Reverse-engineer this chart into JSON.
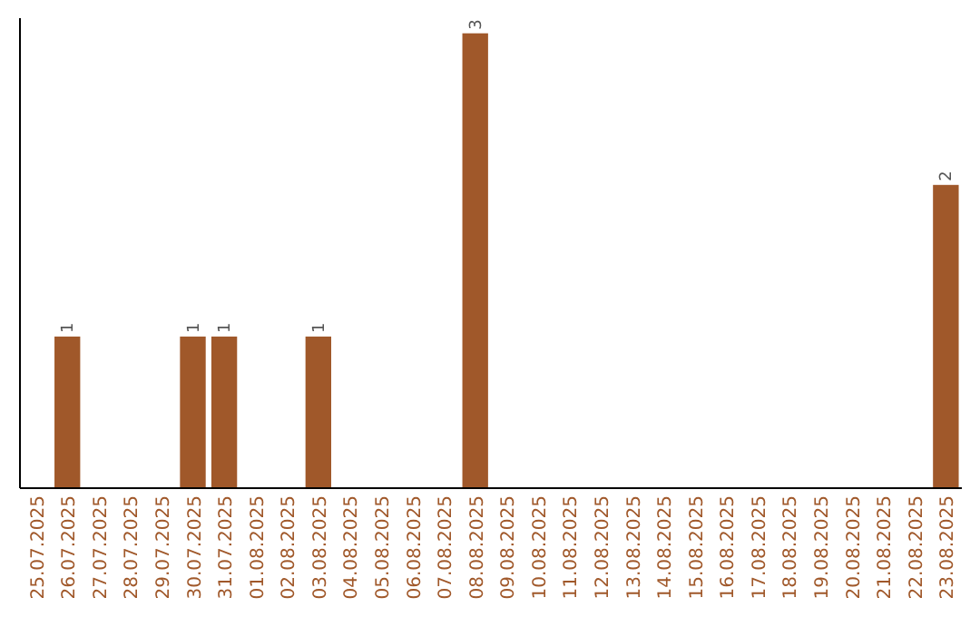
{
  "chart_data": {
    "type": "bar",
    "categories": [
      "25.07.2025",
      "26.07.2025",
      "27.07.2025",
      "28.07.2025",
      "29.07.2025",
      "30.07.2025",
      "31.07.2025",
      "01.08.2025",
      "02.08.2025",
      "03.08.2025",
      "04.08.2025",
      "05.08.2025",
      "06.08.2025",
      "07.08.2025",
      "08.08.2025",
      "09.08.2025",
      "10.08.2025",
      "11.08.2025",
      "12.08.2025",
      "13.08.2025",
      "14.08.2025",
      "15.08.2025",
      "16.08.2025",
      "17.08.2025",
      "18.08.2025",
      "19.08.2025",
      "20.08.2025",
      "21.08.2025",
      "22.08.2025",
      "23.08.2025"
    ],
    "values": [
      0,
      1,
      0,
      0,
      0,
      1,
      1,
      0,
      0,
      1,
      0,
      0,
      0,
      0,
      3,
      0,
      0,
      0,
      0,
      0,
      0,
      0,
      0,
      0,
      0,
      0,
      0,
      0,
      0,
      2
    ],
    "value_labels": [
      null,
      "1",
      null,
      null,
      null,
      "1",
      "1",
      null,
      null,
      "1",
      null,
      null,
      null,
      null,
      "3",
      null,
      null,
      null,
      null,
      null,
      null,
      null,
      null,
      null,
      null,
      null,
      null,
      null,
      null,
      "2"
    ],
    "color": "#a0582a",
    "ylim": [
      0,
      3.1
    ],
    "tick_labels": "x"
  }
}
